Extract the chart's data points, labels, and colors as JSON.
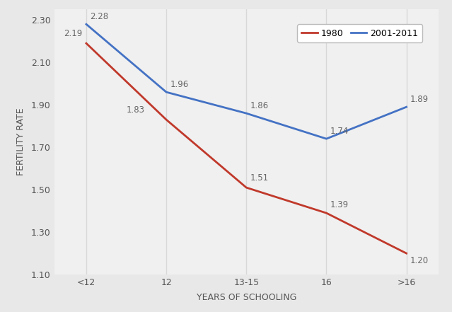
{
  "categories": [
    "<12",
    "12",
    "13-15",
    "16",
    ">16"
  ],
  "series_1980": [
    2.19,
    1.83,
    1.51,
    1.39,
    1.2
  ],
  "series_2001": [
    2.28,
    1.96,
    1.86,
    1.74,
    1.89
  ],
  "color_1980": "#c0392b",
  "color_2001": "#4472c4",
  "label_1980": "1980",
  "label_2001": "2001-2011",
  "xlabel": "YEARS OF SCHOOLING",
  "ylabel": "FERTILITY RATE",
  "ylim": [
    1.1,
    2.35
  ],
  "yticks": [
    1.1,
    1.3,
    1.5,
    1.7,
    1.9,
    2.1,
    2.3
  ],
  "outer_bg": "#e8e8e8",
  "inner_bg": "#f0f0f0",
  "grid_color": "#d8d8d8",
  "linewidth": 2.0,
  "label_color": "#666666",
  "label_fontsize": 8.5
}
